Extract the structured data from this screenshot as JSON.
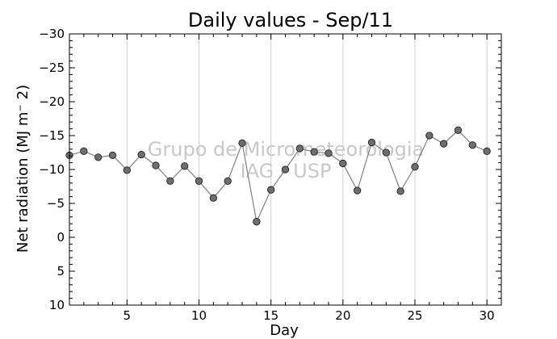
{
  "chart_data": {
    "type": "line",
    "title": "Daily values - Sep/11",
    "xlabel": "Day",
    "ylabel": "Net radiation (MJ m⁻ 2)",
    "xlim": [
      1,
      31
    ],
    "ylim": [
      -30,
      10
    ],
    "y_inverted": true,
    "grid": "vertical",
    "x_ticks": [
      5,
      10,
      15,
      20,
      25,
      30
    ],
    "y_ticks": [
      -30,
      -25,
      -20,
      -15,
      -10,
      -5,
      0,
      5,
      10
    ],
    "x_tick_labels": [
      "5",
      "10",
      "15",
      "20",
      "25",
      "30"
    ],
    "y_tick_labels": [
      "−30",
      "−25",
      "−20",
      "−15",
      "−10",
      "−5",
      "0",
      "5",
      "10"
    ],
    "watermark": [
      "Grupo de Micrometeorologia",
      "IAG - USP"
    ],
    "series": [
      {
        "color": "#808080",
        "marker_color": "#6e6e6e",
        "x": [
          1,
          2,
          3,
          4,
          5,
          6,
          7,
          8,
          9,
          10,
          11,
          12,
          13,
          14,
          15,
          16,
          17,
          18,
          19,
          20,
          21,
          22,
          23,
          24,
          25,
          26,
          27,
          28,
          29,
          30
        ],
        "y": [
          -12.1,
          -12.7,
          -11.8,
          -12.1,
          -9.9,
          -12.2,
          -10.6,
          -8.3,
          -10.5,
          -8.3,
          -5.8,
          -8.3,
          -13.9,
          -2.3,
          -7.0,
          -10.0,
          -13.1,
          -12.6,
          -12.4,
          -10.9,
          -6.9,
          -14.0,
          -12.5,
          -6.8,
          -10.4,
          -15.0,
          -13.8,
          -15.8,
          -13.6,
          -12.7
        ]
      }
    ]
  }
}
